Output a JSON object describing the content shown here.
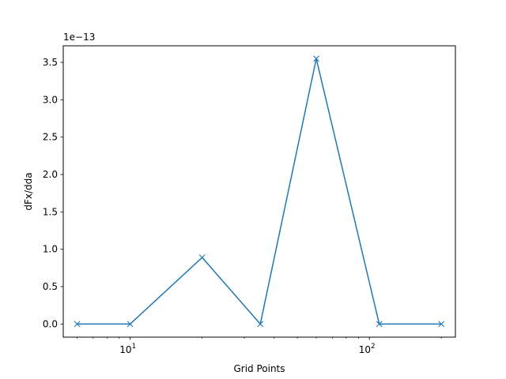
{
  "chart_data": {
    "type": "line",
    "title": "",
    "xlabel": "Grid Points",
    "ylabel": "dFx/dda",
    "xscale": "log",
    "xlim": [
      5.25,
      229
    ],
    "ylim": [
      -1.76e-14,
      3.722e-13
    ],
    "y_offset_text": "1e−13",
    "x_major_ticks": [
      {
        "value": 10,
        "base": "10",
        "exp": "1"
      },
      {
        "value": 100,
        "base": "10",
        "exp": "2"
      }
    ],
    "y_ticks": [
      {
        "value": 0.0,
        "label": "0.0"
      },
      {
        "value": 5e-14,
        "label": "0.5"
      },
      {
        "value": 1e-13,
        "label": "1.0"
      },
      {
        "value": 1.5e-13,
        "label": "1.5"
      },
      {
        "value": 2e-13,
        "label": "2.0"
      },
      {
        "value": 2.5e-13,
        "label": "2.5"
      },
      {
        "value": 3e-13,
        "label": "3.0"
      },
      {
        "value": 3.5e-13,
        "label": "3.5"
      }
    ],
    "grid": false,
    "legend": "none",
    "series": [
      {
        "color": "#1f77b4",
        "marker": "x",
        "x": [
          6,
          10,
          20,
          35,
          60,
          110,
          200
        ],
        "y": [
          0.0,
          0.0,
          8.9e-14,
          0.0,
          3.55e-13,
          0.0,
          0.0
        ]
      }
    ]
  }
}
